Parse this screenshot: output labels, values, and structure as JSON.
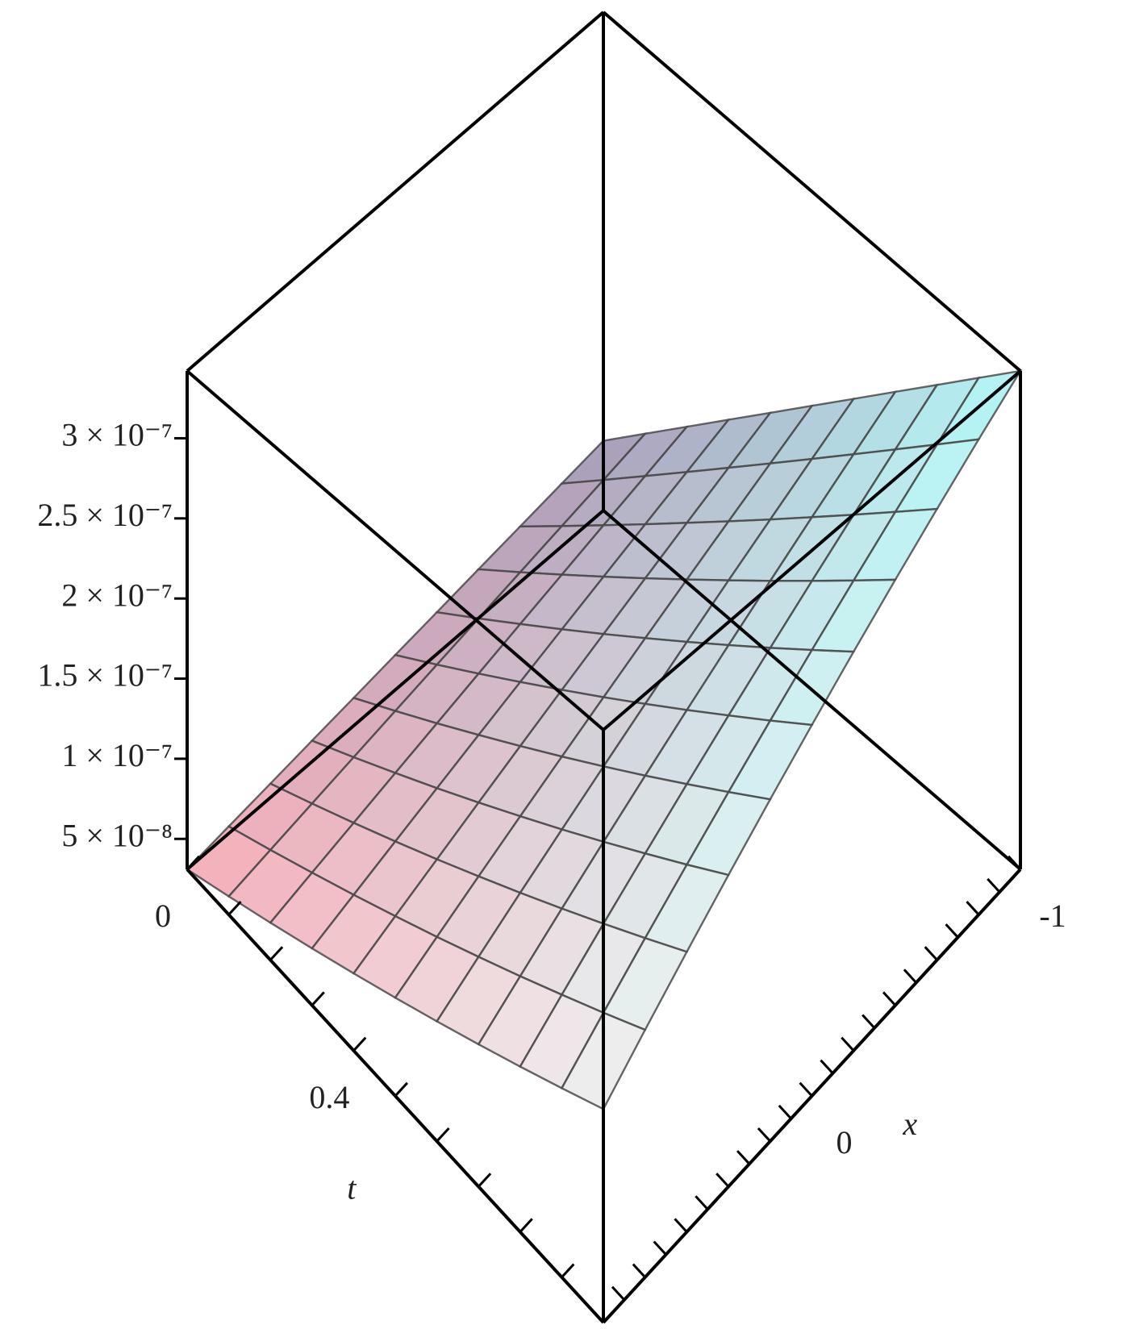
{
  "chart_data": {
    "type": "surface",
    "x": [
      -1,
      -0.8,
      -0.6,
      -0.4,
      -0.2,
      0,
      0.2,
      0.4,
      0.6,
      0.8,
      1
    ],
    "t": [
      0,
      0.1,
      0.2,
      0.3,
      0.4,
      0.5,
      0.6,
      0.7,
      0.8,
      0.9,
      1
    ],
    "z": [
      [
        7.45e-08,
        7.02e-08,
        6.58e-08,
        6.15e-08,
        5.71e-08,
        5.28e-08,
        4.84e-08,
        4.41e-08,
        3.97e-08,
        3.54e-08,
        3.1e-08
      ],
      [
        1.013e-07,
        9.53e-08,
        8.94e-08,
        8.35e-08,
        7.76e-08,
        7.17e-08,
        6.58e-08,
        5.99e-08,
        5.4e-08,
        4.81e-08,
        4.22e-08
      ],
      [
        1.28e-07,
        1.205e-07,
        1.131e-07,
        1.056e-07,
        9.82e-08,
        9.07e-08,
        8.32e-08,
        7.58e-08,
        6.83e-08,
        6.09e-08,
        5.34e-08
      ],
      [
        1.548e-07,
        1.457e-07,
        1.367e-07,
        1.277e-07,
        1.187e-07,
        1.097e-07,
        1.007e-07,
        9.16e-08,
        8.26e-08,
        7.36e-08,
        6.46e-08
      ],
      [
        1.815e-07,
        1.709e-07,
        1.604e-07,
        1.498e-07,
        1.392e-07,
        1.287e-07,
        1.181e-07,
        1.075e-07,
        9.69e-08,
        8.64e-08,
        7.58e-08
      ],
      [
        2.083e-07,
        1.961e-07,
        1.84e-07,
        1.719e-07,
        1.598e-07,
        1.476e-07,
        1.355e-07,
        1.234e-07,
        1.113e-07,
        9.91e-08,
        8.7e-08
      ],
      [
        2.35e-07,
        2.213e-07,
        2.076e-07,
        1.94e-07,
        1.803e-07,
        1.666e-07,
        1.529e-07,
        1.392e-07,
        1.256e-07,
        1.119e-07,
        9.82e-08
      ],
      [
        2.618e-07,
        2.465e-07,
        2.313e-07,
        2.16e-07,
        2.008e-07,
        1.856e-07,
        1.703e-07,
        1.551e-07,
        1.399e-07,
        1.246e-07,
        1.094e-07
      ],
      [
        2.885e-07,
        2.717e-07,
        2.549e-07,
        2.381e-07,
        2.213e-07,
        2.046e-07,
        1.878e-07,
        1.71e-07,
        1.542e-07,
        1.374e-07,
        1.206e-07
      ],
      [
        3.153e-07,
        2.969e-07,
        2.786e-07,
        2.602e-07,
        2.419e-07,
        2.235e-07,
        2.052e-07,
        1.868e-07,
        1.685e-07,
        1.501e-07,
        1.318e-07
      ],
      [
        3.42e-07,
        3.221e-07,
        3.022e-07,
        2.823e-07,
        2.624e-07,
        2.425e-07,
        2.226e-07,
        2.027e-07,
        1.828e-07,
        1.629e-07,
        1.43e-07
      ]
    ],
    "xlim": [
      -1,
      1
    ],
    "tlim": [
      0,
      1
    ],
    "zlim": [
      3.1e-08,
      3.42e-07
    ],
    "zticks": [
      {
        "value": 5e-08,
        "label": "5 × 10⁻⁸"
      },
      {
        "value": 1e-07,
        "label": "1 × 10⁻⁷"
      },
      {
        "value": 1.5e-07,
        "label": "1.5 × 10⁻⁷"
      },
      {
        "value": 2e-07,
        "label": "2 × 10⁻⁷"
      },
      {
        "value": 2.5e-07,
        "label": "2.5 × 10⁻⁷"
      },
      {
        "value": 3e-07,
        "label": "3 × 10⁻⁷"
      }
    ],
    "xticks": [
      -1,
      0
    ],
    "x_minor_ticks": [
      -0.9,
      -0.8,
      -0.7,
      -0.6,
      -0.5,
      -0.4,
      -0.3,
      -0.2,
      -0.1,
      0.1,
      0.2,
      0.3,
      0.4,
      0.5,
      0.6,
      0.7,
      0.8,
      0.9
    ],
    "tticks": [
      0,
      0.4
    ],
    "t_minor_ticks": [
      0.1,
      0.2,
      0.3,
      0.5,
      0.6,
      0.7,
      0.8,
      0.9
    ],
    "xlabel": "x",
    "tlabel": "t",
    "corner_colors": [
      "#f47c8c",
      "#e6e6e6",
      "#7ff2f2",
      "#6e5a88"
    ],
    "mesh_color": "#4a4a4a"
  }
}
